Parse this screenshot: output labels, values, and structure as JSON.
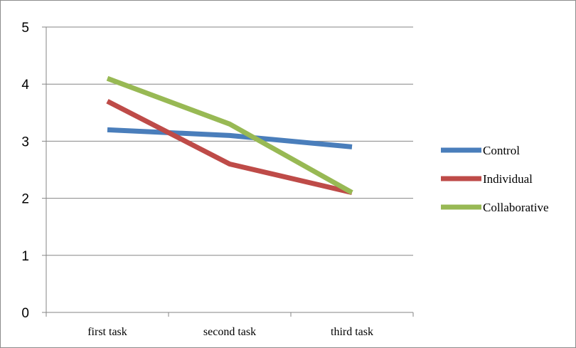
{
  "chart_data": {
    "type": "line",
    "title": "",
    "xlabel": "",
    "ylabel": "",
    "categories": [
      "first task",
      "second task",
      "third task"
    ],
    "ylim": [
      0,
      5
    ],
    "yticks": [
      "0",
      "1",
      "2",
      "3",
      "4",
      "5"
    ],
    "grid": "horizontal",
    "legend_position": "right",
    "series": [
      {
        "name": "Control",
        "color": "#4a7ebb",
        "values": [
          3.2,
          3.1,
          2.9
        ]
      },
      {
        "name": "Individual",
        "color": "#be4b48",
        "values": [
          3.7,
          2.6,
          2.1
        ]
      },
      {
        "name": "Collaborative",
        "color": "#98b954",
        "values": [
          4.1,
          3.3,
          2.1
        ]
      }
    ]
  }
}
